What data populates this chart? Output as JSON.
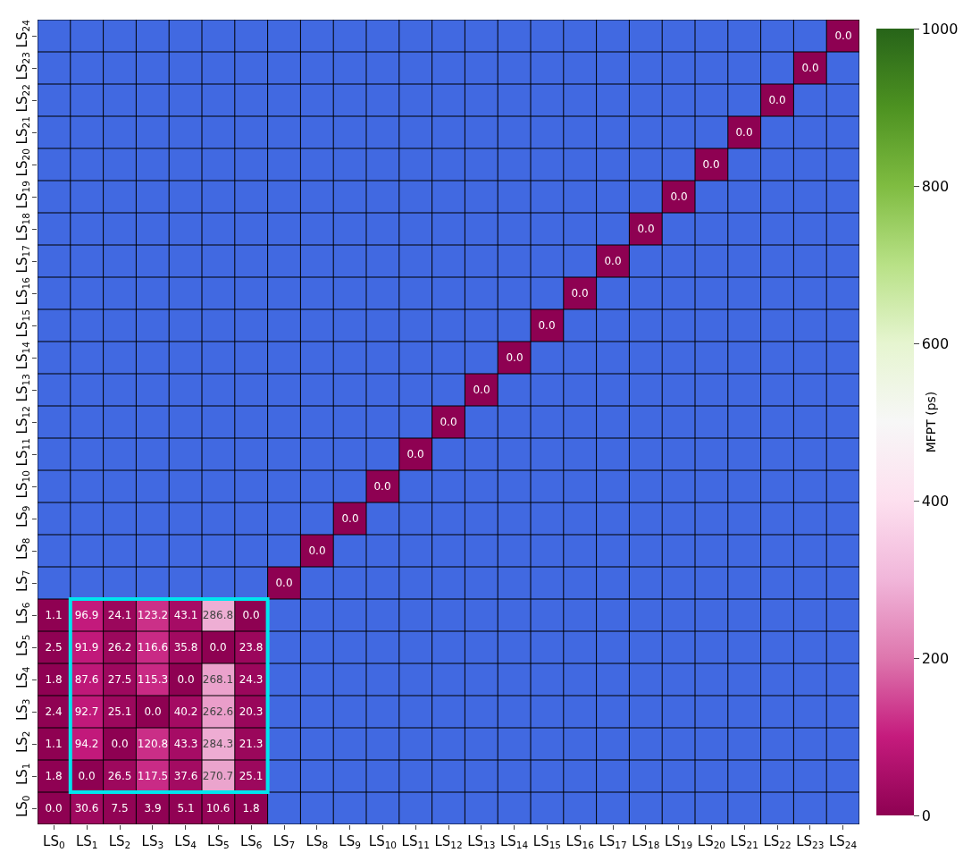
{
  "chart_data": {
    "type": "heatmap",
    "clabel": "MFPT (ps)",
    "clim": [
      0,
      1000
    ],
    "cticks": [
      0,
      200,
      400,
      600,
      800,
      1000
    ],
    "grid": true,
    "data_labels": true,
    "categories": [
      "LS$_{0}$",
      "LS$_{1}$",
      "LS$_{2}$",
      "LS$_{3}$",
      "LS$_{4}$",
      "LS$_{5}$",
      "LS$_{6}$",
      "LS$_{7}$",
      "LS$_{8}$",
      "LS$_{9}$",
      "LS$_{10}$",
      "LS$_{11}$",
      "LS$_{12}$",
      "LS$_{13}$",
      "LS$_{14}$",
      "LS$_{15}$",
      "LS$_{16}$",
      "LS$_{17}$",
      "LS$_{18}$",
      "LS$_{19}$",
      "LS$_{20}$",
      "LS$_{21}$",
      "LS$_{22}$",
      "LS$_{23}$",
      "LS$_{24}$"
    ],
    "y_categories": [
      "LS$_{24}$",
      "LS$_{23}$",
      "LS$_{22}$",
      "LS$_{21}$",
      "LS$_{20}$",
      "LS$_{19}$",
      "LS$_{18}$",
      "LS$_{17}$",
      "LS$_{16}$",
      "LS$_{15}$",
      "LS$_{14}$",
      "LS$_{13}$",
      "LS$_{12}$",
      "LS$_{11}$",
      "LS$_{10}$",
      "LS$_{9}$",
      "LS$_{8}$",
      "LS$_{7}$",
      "LS$_{6}$",
      "LS$_{5}$",
      "LS$_{4}$",
      "LS$_{3}$",
      "LS$_{2}$",
      "LS$_{1}$",
      "LS$_{0}$"
    ],
    "cells": [
      [
        null,
        null,
        null,
        null,
        null,
        null,
        null,
        null,
        null,
        null,
        null,
        null,
        null,
        null,
        null,
        null,
        null,
        null,
        null,
        null,
        null,
        null,
        null,
        null,
        0.0
      ],
      [
        null,
        null,
        null,
        null,
        null,
        null,
        null,
        null,
        null,
        null,
        null,
        null,
        null,
        null,
        null,
        null,
        null,
        null,
        null,
        null,
        null,
        null,
        null,
        0.0,
        null
      ],
      [
        null,
        null,
        null,
        null,
        null,
        null,
        null,
        null,
        null,
        null,
        null,
        null,
        null,
        null,
        null,
        null,
        null,
        null,
        null,
        null,
        null,
        null,
        0.0,
        null,
        null
      ],
      [
        null,
        null,
        null,
        null,
        null,
        null,
        null,
        null,
        null,
        null,
        null,
        null,
        null,
        null,
        null,
        null,
        null,
        null,
        null,
        null,
        null,
        0.0,
        null,
        null,
        null
      ],
      [
        null,
        null,
        null,
        null,
        null,
        null,
        null,
        null,
        null,
        null,
        null,
        null,
        null,
        null,
        null,
        null,
        null,
        null,
        null,
        null,
        0.0,
        null,
        null,
        null,
        null
      ],
      [
        null,
        null,
        null,
        null,
        null,
        null,
        null,
        null,
        null,
        null,
        null,
        null,
        null,
        null,
        null,
        null,
        null,
        null,
        null,
        0.0,
        null,
        null,
        null,
        null,
        null
      ],
      [
        null,
        null,
        null,
        null,
        null,
        null,
        null,
        null,
        null,
        null,
        null,
        null,
        null,
        null,
        null,
        null,
        null,
        null,
        0.0,
        null,
        null,
        null,
        null,
        null,
        null
      ],
      [
        null,
        null,
        null,
        null,
        null,
        null,
        null,
        null,
        null,
        null,
        null,
        null,
        null,
        null,
        null,
        null,
        null,
        0.0,
        null,
        null,
        null,
        null,
        null,
        null,
        null
      ],
      [
        null,
        null,
        null,
        null,
        null,
        null,
        null,
        null,
        null,
        null,
        null,
        null,
        null,
        null,
        null,
        null,
        0.0,
        null,
        null,
        null,
        null,
        null,
        null,
        null,
        null
      ],
      [
        null,
        null,
        null,
        null,
        null,
        null,
        null,
        null,
        null,
        null,
        null,
        null,
        null,
        null,
        null,
        0.0,
        null,
        null,
        null,
        null,
        null,
        null,
        null,
        null,
        null
      ],
      [
        null,
        null,
        null,
        null,
        null,
        null,
        null,
        null,
        null,
        null,
        null,
        null,
        null,
        null,
        0.0,
        null,
        null,
        null,
        null,
        null,
        null,
        null,
        null,
        null,
        null
      ],
      [
        null,
        null,
        null,
        null,
        null,
        null,
        null,
        null,
        null,
        null,
        null,
        null,
        null,
        0.0,
        null,
        null,
        null,
        null,
        null,
        null,
        null,
        null,
        null,
        null,
        null
      ],
      [
        null,
        null,
        null,
        null,
        null,
        null,
        null,
        null,
        null,
        null,
        null,
        null,
        0.0,
        null,
        null,
        null,
        null,
        null,
        null,
        null,
        null,
        null,
        null,
        null,
        null
      ],
      [
        null,
        null,
        null,
        null,
        null,
        null,
        null,
        null,
        null,
        null,
        null,
        0.0,
        null,
        null,
        null,
        null,
        null,
        null,
        null,
        null,
        null,
        null,
        null,
        null,
        null
      ],
      [
        null,
        null,
        null,
        null,
        null,
        null,
        null,
        null,
        null,
        null,
        0.0,
        null,
        null,
        null,
        null,
        null,
        null,
        null,
        null,
        null,
        null,
        null,
        null,
        null,
        null
      ],
      [
        null,
        null,
        null,
        null,
        null,
        null,
        null,
        null,
        null,
        0.0,
        null,
        null,
        null,
        null,
        null,
        null,
        null,
        null,
        null,
        null,
        null,
        null,
        null,
        null,
        null
      ],
      [
        null,
        null,
        null,
        null,
        null,
        null,
        null,
        null,
        0.0,
        null,
        null,
        null,
        null,
        null,
        null,
        null,
        null,
        null,
        null,
        null,
        null,
        null,
        null,
        null,
        null
      ],
      [
        null,
        null,
        null,
        null,
        null,
        null,
        null,
        0.0,
        null,
        null,
        null,
        null,
        null,
        null,
        null,
        null,
        null,
        null,
        null,
        null,
        null,
        null,
        null,
        null,
        null
      ],
      [
        1.1,
        96.9,
        24.1,
        123.2,
        43.1,
        286.8,
        0.0,
        null,
        null,
        null,
        null,
        null,
        null,
        null,
        null,
        null,
        null,
        null,
        null,
        null,
        null,
        null,
        null,
        null,
        null
      ],
      [
        2.5,
        91.9,
        26.2,
        116.6,
        35.8,
        0.0,
        23.8,
        null,
        null,
        null,
        null,
        null,
        null,
        null,
        null,
        null,
        null,
        null,
        null,
        null,
        null,
        null,
        null,
        null,
        null
      ],
      [
        1.8,
        87.6,
        27.5,
        115.3,
        0.0,
        268.1,
        24.3,
        null,
        null,
        null,
        null,
        null,
        null,
        null,
        null,
        null,
        null,
        null,
        null,
        null,
        null,
        null,
        null,
        null,
        null
      ],
      [
        2.4,
        92.7,
        25.1,
        0.0,
        40.2,
        262.6,
        20.3,
        null,
        null,
        null,
        null,
        null,
        null,
        null,
        null,
        null,
        null,
        null,
        null,
        null,
        null,
        null,
        null,
        null,
        null
      ],
      [
        1.1,
        94.2,
        0.0,
        120.8,
        43.3,
        284.3,
        21.3,
        null,
        null,
        null,
        null,
        null,
        null,
        null,
        null,
        null,
        null,
        null,
        null,
        null,
        null,
        null,
        null,
        null,
        null
      ],
      [
        1.8,
        0.0,
        26.5,
        117.5,
        37.6,
        270.7,
        25.1,
        null,
        null,
        null,
        null,
        null,
        null,
        null,
        null,
        null,
        null,
        null,
        null,
        null,
        null,
        null,
        null,
        null,
        null
      ],
      [
        0.0,
        30.6,
        7.5,
        3.9,
        5.1,
        10.6,
        1.8,
        null,
        null,
        null,
        null,
        null,
        null,
        null,
        null,
        null,
        null,
        null,
        null,
        null,
        null,
        null,
        null,
        null,
        null
      ]
    ],
    "cell_labels": [
      [
        null,
        null,
        null,
        null,
        null,
        null,
        null,
        null,
        null,
        null,
        null,
        null,
        null,
        null,
        null,
        null,
        null,
        null,
        null,
        null,
        null,
        null,
        null,
        null,
        "0.0"
      ],
      [
        null,
        null,
        null,
        null,
        null,
        null,
        null,
        null,
        null,
        null,
        null,
        null,
        null,
        null,
        null,
        null,
        null,
        null,
        null,
        null,
        null,
        null,
        null,
        "0.0",
        null
      ],
      [
        null,
        null,
        null,
        null,
        null,
        null,
        null,
        null,
        null,
        null,
        null,
        null,
        null,
        null,
        null,
        null,
        null,
        null,
        null,
        null,
        null,
        null,
        "0.0",
        null,
        null
      ],
      [
        null,
        null,
        null,
        null,
        null,
        null,
        null,
        null,
        null,
        null,
        null,
        null,
        null,
        null,
        null,
        null,
        null,
        null,
        null,
        null,
        null,
        "0.0",
        null,
        null,
        null
      ],
      [
        null,
        null,
        null,
        null,
        null,
        null,
        null,
        null,
        null,
        null,
        null,
        null,
        null,
        null,
        null,
        null,
        null,
        null,
        null,
        null,
        "0.0",
        null,
        null,
        null,
        null
      ],
      [
        null,
        null,
        null,
        null,
        null,
        null,
        null,
        null,
        null,
        null,
        null,
        null,
        null,
        null,
        null,
        null,
        null,
        null,
        null,
        "0.0",
        null,
        null,
        null,
        null,
        null
      ],
      [
        null,
        null,
        null,
        null,
        null,
        null,
        null,
        null,
        null,
        null,
        null,
        null,
        null,
        null,
        null,
        null,
        null,
        null,
        "0.0",
        null,
        null,
        null,
        null,
        null,
        null
      ],
      [
        null,
        null,
        null,
        null,
        null,
        null,
        null,
        null,
        null,
        null,
        null,
        null,
        null,
        null,
        null,
        null,
        null,
        "0.0",
        null,
        null,
        null,
        null,
        null,
        null,
        null
      ],
      [
        null,
        null,
        null,
        null,
        null,
        null,
        null,
        null,
        null,
        null,
        null,
        null,
        null,
        null,
        null,
        null,
        "0.0",
        null,
        null,
        null,
        null,
        null,
        null,
        null,
        null
      ],
      [
        null,
        null,
        null,
        null,
        null,
        null,
        null,
        null,
        null,
        null,
        null,
        null,
        null,
        null,
        null,
        "0.0",
        null,
        null,
        null,
        null,
        null,
        null,
        null,
        null,
        null
      ],
      [
        null,
        null,
        null,
        null,
        null,
        null,
        null,
        null,
        null,
        null,
        null,
        null,
        null,
        null,
        "0.0",
        null,
        null,
        null,
        null,
        null,
        null,
        null,
        null,
        null,
        null
      ],
      [
        null,
        null,
        null,
        null,
        null,
        null,
        null,
        null,
        null,
        null,
        null,
        null,
        null,
        "0.0",
        null,
        null,
        null,
        null,
        null,
        null,
        null,
        null,
        null,
        null,
        null
      ],
      [
        null,
        null,
        null,
        null,
        null,
        null,
        null,
        null,
        null,
        null,
        null,
        null,
        "0.0",
        null,
        null,
        null,
        null,
        null,
        null,
        null,
        null,
        null,
        null,
        null,
        null
      ],
      [
        null,
        null,
        null,
        null,
        null,
        null,
        null,
        null,
        null,
        null,
        null,
        "0.0",
        null,
        null,
        null,
        null,
        null,
        null,
        null,
        null,
        null,
        null,
        null,
        null,
        null
      ],
      [
        null,
        null,
        null,
        null,
        null,
        null,
        null,
        null,
        null,
        null,
        "0.0",
        null,
        null,
        null,
        null,
        null,
        null,
        null,
        null,
        null,
        null,
        null,
        null,
        null,
        null
      ],
      [
        null,
        null,
        null,
        null,
        null,
        null,
        null,
        null,
        null,
        "0.0",
        null,
        null,
        null,
        null,
        null,
        null,
        null,
        null,
        null,
        null,
        null,
        null,
        null,
        null,
        null
      ],
      [
        null,
        null,
        null,
        null,
        null,
        null,
        null,
        null,
        "0.0",
        null,
        null,
        null,
        null,
        null,
        null,
        null,
        null,
        null,
        null,
        null,
        null,
        null,
        null,
        null,
        null
      ],
      [
        null,
        null,
        null,
        null,
        null,
        null,
        null,
        "0.0",
        null,
        null,
        null,
        null,
        null,
        null,
        null,
        null,
        null,
        null,
        null,
        null,
        null,
        null,
        null,
        null,
        null
      ],
      [
        "1.1",
        "96.9",
        "24.1",
        "123.2",
        "43.1",
        "286.8",
        "0.0",
        null,
        null,
        null,
        null,
        null,
        null,
        null,
        null,
        null,
        null,
        null,
        null,
        null,
        null,
        null,
        null,
        null,
        null
      ],
      [
        "2.5",
        "91.9",
        "26.2",
        "116.6",
        "35.8",
        "0.0",
        "23.8",
        null,
        null,
        null,
        null,
        null,
        null,
        null,
        null,
        null,
        null,
        null,
        null,
        null,
        null,
        null,
        null,
        null,
        null
      ],
      [
        "1.8",
        "87.6",
        "27.5",
        "115.3",
        "0.0",
        "268.1",
        "24.3",
        null,
        null,
        null,
        null,
        null,
        null,
        null,
        null,
        null,
        null,
        null,
        null,
        null,
        null,
        null,
        null,
        null,
        null
      ],
      [
        "2.4",
        "92.7",
        "25.1",
        "0.0",
        "40.2",
        "262.6",
        "20.3",
        null,
        null,
        null,
        null,
        null,
        null,
        null,
        null,
        null,
        null,
        null,
        null,
        null,
        null,
        null,
        null,
        null,
        null
      ],
      [
        "1.1",
        "94.2",
        "0.0",
        "120.8",
        "43.3",
        "284.3",
        "21.3",
        null,
        null,
        null,
        null,
        null,
        null,
        null,
        null,
        null,
        null,
        null,
        null,
        null,
        null,
        null,
        null,
        null,
        null
      ],
      [
        "1.8",
        "0.0",
        "26.5",
        "117.5",
        "37.6",
        "270.7",
        "25.1",
        null,
        null,
        null,
        null,
        null,
        null,
        null,
        null,
        null,
        null,
        null,
        null,
        null,
        null,
        null,
        null,
        null,
        null
      ],
      [
        "0.0",
        "30.6",
        "7.5",
        "3.9",
        "5.1",
        "10.6",
        "1.8",
        null,
        null,
        null,
        null,
        null,
        null,
        null,
        null,
        null,
        null,
        null,
        null,
        null,
        null,
        null,
        null,
        null,
        null
      ]
    ]
  }
}
